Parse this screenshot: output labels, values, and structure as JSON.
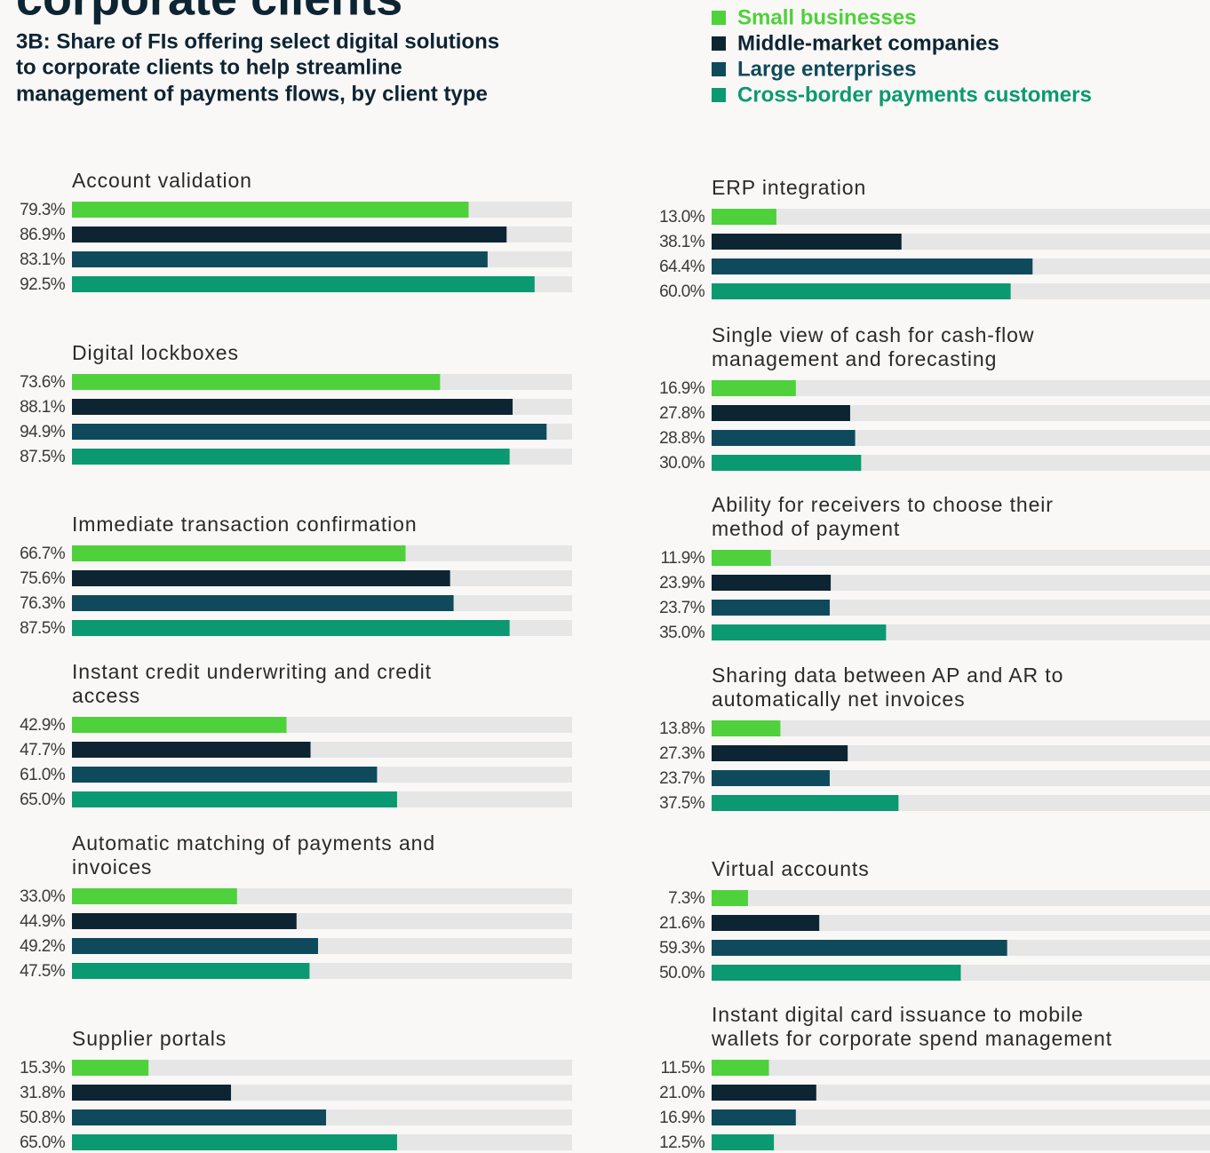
{
  "chart_data": {
    "type": "bar",
    "title": "corporate clients",
    "subtitle": [
      "3B: Share of FIs offering select digital solutions",
      "to corporate clients to help streamline",
      "management of payments flows, by client type"
    ],
    "xlim": [
      0,
      100
    ],
    "categories": [
      "Account validation",
      "Digital lockboxes",
      "Immediate transaction confirmation",
      "Instant credit underwriting and credit access",
      "Automatic matching of payments and invoices",
      "Supplier portals",
      "ERP integration",
      "Single view of cash for cash-flow management and forecasting",
      "Ability for receivers to choose their method of payment",
      "Sharing data between AP and AR to automatically net invoices",
      "Virtual accounts",
      "Instant digital card issuance to mobile wallets for corporate spend management"
    ],
    "series": [
      {
        "name": "Small businesses",
        "color": "#4fd13c",
        "values": [
          79.3,
          73.6,
          66.7,
          42.9,
          33.0,
          15.3,
          13.0,
          16.9,
          11.9,
          13.8,
          7.3,
          11.5
        ],
        "value_labels": [
          "79.3%",
          "73.6%",
          "66.7%",
          "42.9%",
          "33.0%",
          "15.3%",
          "13.0%",
          "16.9%",
          "11.9%",
          "13.8%",
          "7.3%",
          "11.5%"
        ]
      },
      {
        "name": "Middle-market companies",
        "color": "#0d2433",
        "values": [
          86.9,
          88.1,
          75.6,
          47.7,
          44.9,
          31.8,
          38.1,
          27.8,
          23.9,
          27.3,
          21.6,
          21.0
        ],
        "value_labels": [
          "86.9%",
          "88.1%",
          "75.6%",
          "47.7%",
          "44.9%",
          "31.8%",
          "38.1%",
          "27.8%",
          "23.9%",
          "27.3%",
          "21.6%",
          "21.0%"
        ]
      },
      {
        "name": "Large enterprises",
        "color": "#0f4a5c",
        "values": [
          83.1,
          94.9,
          76.3,
          61.0,
          49.2,
          50.8,
          64.4,
          28.8,
          23.7,
          23.7,
          59.3,
          16.9
        ],
        "value_labels": [
          "83.1%",
          "94.9%",
          "76.3%",
          "61.0%",
          "49.2%",
          "50.8%",
          "64.4%",
          "28.8%",
          "23.7%",
          "23.7%",
          "59.3%",
          "16.9%"
        ]
      },
      {
        "name": "Cross-border payments customers",
        "color": "#0a9970",
        "values": [
          92.5,
          87.5,
          87.5,
          65.0,
          47.5,
          65.0,
          60.0,
          30.0,
          35.0,
          37.5,
          50.0,
          12.5
        ],
        "value_labels": [
          "92.5%",
          "87.5%",
          "87.5%",
          "65.0%",
          "47.5%",
          "65.0%",
          "60.0%",
          "30.0%",
          "35.0%",
          "37.5%",
          "50.0%",
          "12.5%"
        ]
      }
    ]
  }
}
